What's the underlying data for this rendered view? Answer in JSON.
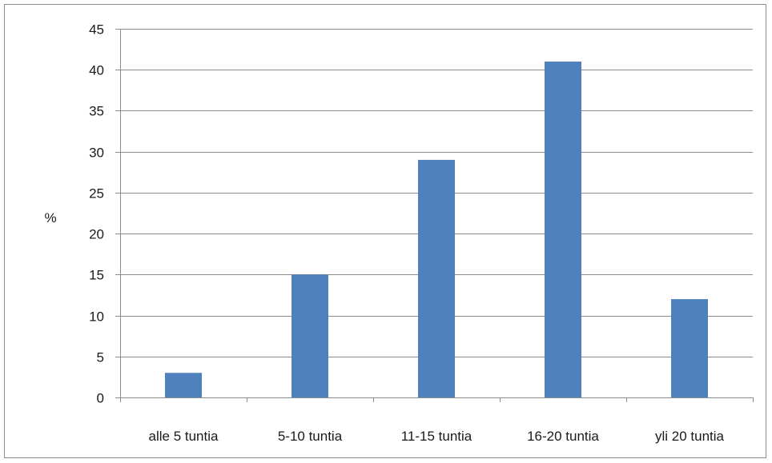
{
  "chart_data": {
    "type": "bar",
    "categories": [
      "alle 5 tuntia",
      "5-10 tuntia",
      "11-15 tuntia",
      "16-20 tuntia",
      "yli 20 tuntia"
    ],
    "values": [
      3,
      15,
      29,
      41,
      12
    ],
    "xlabel": "",
    "ylabel": "%",
    "ylim": [
      0,
      45
    ],
    "yticks": [
      0,
      5,
      10,
      15,
      20,
      25,
      30,
      35,
      40,
      45
    ],
    "grid": true,
    "legend": "none",
    "colors": {
      "bar": "#4f81bd",
      "grid": "#8c8c8c",
      "axis": "#8c8c8c"
    }
  }
}
